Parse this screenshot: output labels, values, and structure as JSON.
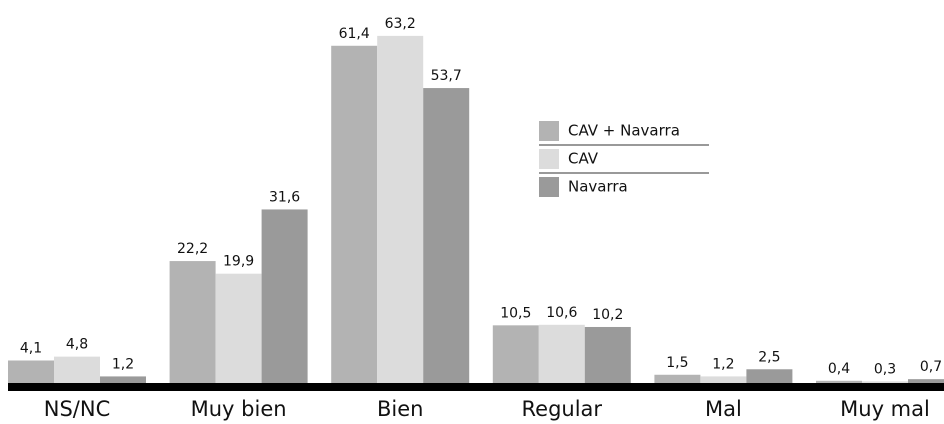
{
  "chart_data": {
    "type": "bar",
    "categories": [
      "NS/NC",
      "Muy bien",
      "Bien",
      "Regular",
      "Mal",
      "Muy mal"
    ],
    "series": [
      {
        "name": "CAV + Navarra",
        "color": "#b3b3b3",
        "values": [
          4.1,
          22.2,
          61.4,
          10.5,
          1.5,
          0.4
        ],
        "value_labels": [
          "4,1",
          "22,2",
          "61,4",
          "10,5",
          "1,5",
          "0,4"
        ]
      },
      {
        "name": "CAV",
        "color": "#dcdcdc",
        "values": [
          4.8,
          19.9,
          63.2,
          10.6,
          1.2,
          0.3
        ],
        "value_labels": [
          "4,8",
          "19,9",
          "63,2",
          "10,6",
          "1,2",
          "0,3"
        ]
      },
      {
        "name": "Navarra",
        "color": "#9a9a9a",
        "values": [
          1.2,
          31.6,
          53.7,
          10.2,
          2.5,
          0.7
        ],
        "value_labels": [
          "1,2",
          "31,6",
          "53,7",
          "10,2",
          "2,5",
          "0,7"
        ]
      }
    ],
    "ylim": [
      0,
      65
    ]
  }
}
